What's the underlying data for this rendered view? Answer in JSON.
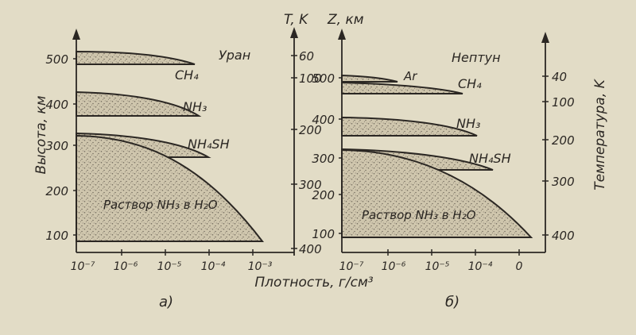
{
  "colors": {
    "paper": "#e2dcc6",
    "ink": "#2b2723",
    "fill": "#cfc6ad",
    "stipple": "#6f675b"
  },
  "left_panel": {
    "planet": "Уран",
    "y_axis_title": "Высота, км",
    "y_ticks": [
      "500",
      "400",
      "300",
      "200",
      "100"
    ],
    "right_axis_title": "T, K",
    "right_ticks": [
      "60",
      "100",
      "200",
      "300",
      "400"
    ],
    "x_ticks": [
      "10⁻⁷",
      "10⁻⁶",
      "10⁻⁵",
      "10⁻⁴",
      "10⁻³"
    ],
    "layers": [
      {
        "label": "CH₄"
      },
      {
        "label": "NH₃"
      },
      {
        "label": "NH₄SH"
      },
      {
        "label": "Раствор NH₃ в H₂O"
      }
    ],
    "caption": "а)"
  },
  "right_panel": {
    "planet": "Нептун",
    "y_axis_title": "Z, км",
    "y_ticks": [
      "500",
      "400",
      "300",
      "200",
      "100"
    ],
    "right_axis_title": "Температура, K",
    "right_ticks": [
      "40",
      "100",
      "200",
      "300",
      "400"
    ],
    "x_ticks": [
      "10⁻⁷",
      "10⁻⁶",
      "10⁻⁵",
      "10⁻⁴",
      "0"
    ],
    "layers": [
      {
        "label": "Ar"
      },
      {
        "label": "CH₄"
      },
      {
        "label": "NH₃"
      },
      {
        "label": "NH₄SH"
      },
      {
        "label": "Раствор NH₃ в H₂O"
      }
    ],
    "caption": "б)"
  },
  "x_axis_title": "Плотность, г/см³"
}
